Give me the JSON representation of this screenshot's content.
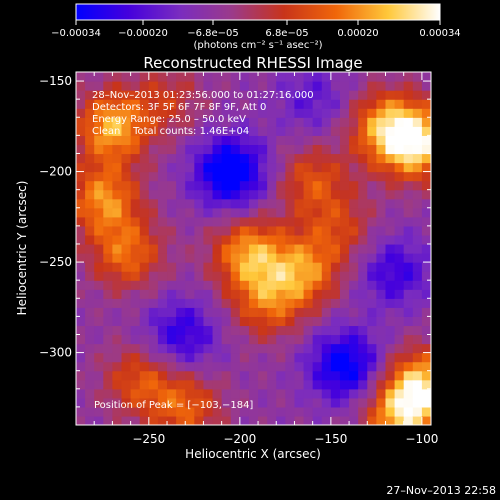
{
  "chart_data": {
    "type": "heatmap",
    "title": "Reconstructed RHESSI Image",
    "xlabel": "Heliocentric X (arcsec)",
    "ylabel": "Heliocentric Y (arcsec)",
    "xlim": [
      -290,
      -95
    ],
    "ylim": [
      -340,
      -145
    ],
    "x_ticks": [
      -250,
      -200,
      -150,
      -100
    ],
    "x_tick_labels": [
      "−250",
      "−200",
      "−150",
      "−100"
    ],
    "y_ticks": [
      -150,
      -200,
      -250,
      -300
    ],
    "y_tick_labels": [
      "−150",
      "−200",
      "−250",
      "−300"
    ],
    "colorbar": {
      "range": [
        -0.00034,
        0.00034
      ],
      "tick_labels": [
        "−0.00034",
        "−0.00020",
        "−6.8e−05",
        "6.8e−05",
        "0.00020",
        "0.00034"
      ],
      "units": "(photons cm⁻² s⁻¹ asec⁻²)",
      "colors": [
        "#0000ff",
        "#4400dd",
        "#7a2cbf",
        "#9b3a8a",
        "#c8341a",
        "#f0660a",
        "#ffc83a",
        "#ffffff"
      ]
    },
    "annotations": [
      "28–Nov–2013 01:23:56.000 to 01:27:16.000",
      "Detectors: 3F 5F 6F 7F 8F 9F, Att 0",
      "Energy Range: 25.0 – 50.0 keV",
      "Clean    Total counts: 1.46E+04"
    ],
    "peak_label": "Position of Peak = [−103,−184]",
    "peak": [
      -103,
      -184
    ],
    "blobs": [
      {
        "x": -205,
        "y": -200,
        "v": -0.00034
      },
      {
        "x": -142,
        "y": -307,
        "v": -0.0003
      },
      {
        "x": -232,
        "y": -290,
        "v": -0.00022
      },
      {
        "x": -115,
        "y": -255,
        "v": -0.0002
      },
      {
        "x": -160,
        "y": -160,
        "v": -0.00014
      },
      {
        "x": -103,
        "y": -184,
        "v": 0.00034
      },
      {
        "x": -120,
        "y": -175,
        "v": 0.00024
      },
      {
        "x": -270,
        "y": -175,
        "v": 0.00028
      },
      {
        "x": -275,
        "y": -215,
        "v": 0.00024
      },
      {
        "x": -262,
        "y": -245,
        "v": 0.0002
      },
      {
        "x": -195,
        "y": -245,
        "v": 0.00026
      },
      {
        "x": -165,
        "y": -255,
        "v": 0.00022
      },
      {
        "x": -185,
        "y": -272,
        "v": 0.00018
      },
      {
        "x": -160,
        "y": -205,
        "v": 0.00016
      },
      {
        "x": -100,
        "y": -318,
        "v": 0.0003
      },
      {
        "x": -112,
        "y": -335,
        "v": 0.00026
      },
      {
        "x": -255,
        "y": -315,
        "v": 0.00016
      },
      {
        "x": -230,
        "y": -330,
        "v": 0.00018
      },
      {
        "x": -145,
        "y": -232,
        "v": 0.00012
      },
      {
        "x": -240,
        "y": -160,
        "v": 0.0001
      }
    ]
  },
  "footer": {
    "timestamp": "27–Nov–2013 22:58"
  }
}
